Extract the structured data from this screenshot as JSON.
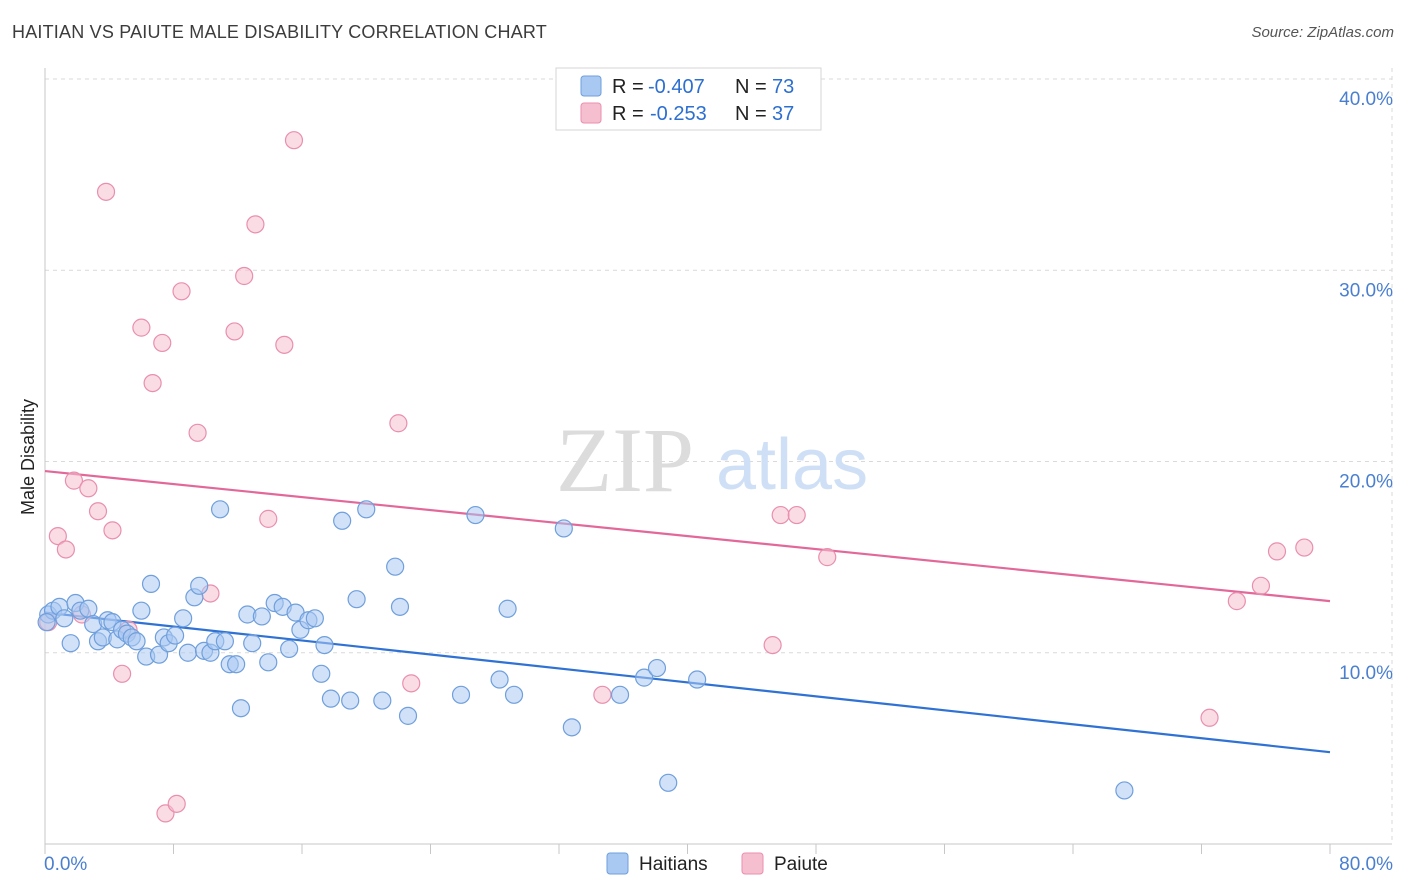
{
  "title": "HAITIAN VS PAIUTE MALE DISABILITY CORRELATION CHART",
  "source": "Source: ZipAtlas.com",
  "watermark": {
    "zip": "ZIP",
    "atlas": "atlas"
  },
  "legend": {
    "rows": [
      {
        "r_label": "R =",
        "r_value": "-0.407",
        "n_label": "N =",
        "n_value": "73"
      },
      {
        "r_label": "R =",
        "r_value": "-0.253",
        "n_label": "N =",
        "n_value": "37"
      }
    ]
  },
  "bottom_legend": [
    "Haitians",
    "Paiute"
  ],
  "colors": {
    "haitians_fill": "#a9c8f2",
    "haitians_stroke": "#6f9fdc",
    "haitians_line": "#2f72d4",
    "paiute_fill": "#f6bfd0",
    "paiute_stroke": "#e98fae",
    "paiute_line": "#e3689a",
    "tick_label": "#4a7fd0",
    "grid": "#d9d9d9"
  },
  "chart_data": {
    "type": "scatter",
    "title": "HAITIAN VS PAIUTE MALE DISABILITY CORRELATION CHART",
    "xlabel": "",
    "ylabel": "Male Disability",
    "xlim": [
      0,
      80
    ],
    "ylim": [
      0,
      40
    ],
    "x_tick_labels": [
      "0.0%",
      "80.0%"
    ],
    "y_ticks": [
      10,
      20,
      30,
      40
    ],
    "y_tick_labels": [
      "10.0%",
      "20.0%",
      "30.0%",
      "40.0%"
    ],
    "grid": true,
    "legend_position": "top-center",
    "series": [
      {
        "name": "Haitians",
        "r": -0.407,
        "n": 73,
        "trend": {
          "x": [
            0,
            80
          ],
          "y": [
            12.1,
            4.8
          ]
        },
        "points": [
          [
            0.2,
            12.0
          ],
          [
            0.5,
            12.2
          ],
          [
            0.9,
            12.4
          ],
          [
            1.2,
            11.8
          ],
          [
            1.6,
            10.5
          ],
          [
            1.9,
            12.6
          ],
          [
            2.2,
            12.2
          ],
          [
            2.7,
            12.3
          ],
          [
            3.0,
            11.5
          ],
          [
            3.3,
            10.6
          ],
          [
            3.6,
            10.8
          ],
          [
            3.9,
            11.7
          ],
          [
            4.2,
            11.6
          ],
          [
            4.5,
            10.7
          ],
          [
            4.8,
            11.2
          ],
          [
            5.1,
            11.0
          ],
          [
            5.4,
            10.8
          ],
          [
            5.7,
            10.6
          ],
          [
            6.0,
            12.2
          ],
          [
            6.3,
            9.8
          ],
          [
            6.6,
            13.6
          ],
          [
            7.1,
            9.9
          ],
          [
            7.4,
            10.8
          ],
          [
            7.7,
            10.5
          ],
          [
            8.1,
            10.9
          ],
          [
            8.6,
            11.8
          ],
          [
            8.9,
            10.0
          ],
          [
            9.3,
            12.9
          ],
          [
            9.6,
            13.5
          ],
          [
            9.9,
            10.1
          ],
          [
            10.3,
            10.0
          ],
          [
            10.6,
            10.6
          ],
          [
            10.9,
            17.5
          ],
          [
            11.2,
            10.6
          ],
          [
            11.5,
            9.4
          ],
          [
            11.9,
            9.4
          ],
          [
            12.2,
            7.1
          ],
          [
            12.6,
            12.0
          ],
          [
            12.9,
            10.5
          ],
          [
            13.5,
            11.9
          ],
          [
            13.9,
            9.5
          ],
          [
            14.3,
            12.6
          ],
          [
            14.8,
            12.4
          ],
          [
            15.2,
            10.2
          ],
          [
            15.6,
            12.1
          ],
          [
            15.9,
            11.2
          ],
          [
            16.4,
            11.7
          ],
          [
            16.8,
            11.8
          ],
          [
            17.2,
            8.9
          ],
          [
            17.4,
            10.4
          ],
          [
            17.8,
            7.6
          ],
          [
            18.5,
            16.9
          ],
          [
            19.0,
            7.5
          ],
          [
            19.4,
            12.8
          ],
          [
            20.0,
            17.5
          ],
          [
            21.0,
            7.5
          ],
          [
            21.8,
            14.5
          ],
          [
            22.1,
            12.4
          ],
          [
            22.6,
            6.7
          ],
          [
            25.9,
            7.8
          ],
          [
            26.8,
            17.2
          ],
          [
            28.3,
            8.6
          ],
          [
            28.8,
            12.3
          ],
          [
            29.2,
            7.8
          ],
          [
            32.3,
            16.5
          ],
          [
            32.8,
            6.1
          ],
          [
            35.8,
            7.8
          ],
          [
            37.3,
            8.7
          ],
          [
            38.1,
            9.2
          ],
          [
            38.8,
            3.2
          ],
          [
            40.6,
            8.6
          ],
          [
            67.2,
            2.8
          ],
          [
            0.1,
            11.6
          ]
        ]
      },
      {
        "name": "Paiute",
        "r": -0.253,
        "n": 37,
        "trend": {
          "x": [
            0,
            80
          ],
          "y": [
            19.5,
            12.7
          ]
        },
        "points": [
          [
            0.2,
            11.6
          ],
          [
            0.8,
            16.1
          ],
          [
            1.3,
            15.4
          ],
          [
            1.8,
            19.0
          ],
          [
            2.3,
            12.0
          ],
          [
            2.7,
            18.6
          ],
          [
            3.3,
            17.4
          ],
          [
            3.8,
            34.1
          ],
          [
            4.2,
            16.4
          ],
          [
            4.8,
            8.9
          ],
          [
            5.2,
            11.2
          ],
          [
            6.0,
            27.0
          ],
          [
            6.7,
            24.1
          ],
          [
            7.3,
            26.2
          ],
          [
            7.5,
            1.6
          ],
          [
            8.2,
            2.1
          ],
          [
            8.5,
            28.9
          ],
          [
            9.5,
            21.5
          ],
          [
            10.3,
            13.1
          ],
          [
            11.8,
            26.8
          ],
          [
            12.4,
            29.7
          ],
          [
            13.1,
            32.4
          ],
          [
            13.9,
            17.0
          ],
          [
            14.9,
            26.1
          ],
          [
            15.5,
            36.8
          ],
          [
            22.0,
            22.0
          ],
          [
            22.8,
            8.4
          ],
          [
            34.7,
            7.8
          ],
          [
            45.3,
            10.4
          ],
          [
            45.8,
            17.2
          ],
          [
            46.8,
            17.2
          ],
          [
            48.7,
            15.0
          ],
          [
            72.5,
            6.6
          ],
          [
            74.2,
            12.7
          ],
          [
            75.7,
            13.5
          ],
          [
            76.7,
            15.3
          ],
          [
            78.4,
            15.5
          ]
        ]
      }
    ]
  }
}
